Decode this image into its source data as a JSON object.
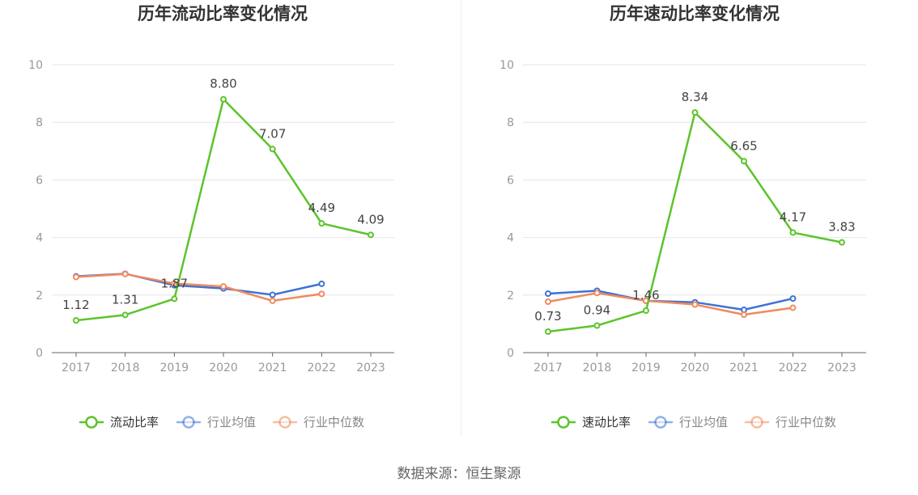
{
  "chart_data": [
    {
      "type": "line",
      "title": "历年流动比率变化情况",
      "categories": [
        "2017",
        "2018",
        "2019",
        "2020",
        "2021",
        "2022",
        "2023"
      ],
      "ylim": [
        0,
        10
      ],
      "yticks": [
        0,
        2,
        4,
        6,
        8,
        10
      ],
      "grid": true,
      "legend_position": "bottom",
      "series": [
        {
          "name": "流动比率",
          "color": "#5cc42b",
          "labeled": true,
          "values": [
            1.12,
            1.31,
            1.87,
            8.8,
            7.07,
            4.49,
            4.09
          ],
          "labels": [
            "1.12",
            "1.31",
            "1.87",
            "8.80",
            "7.07",
            "4.49",
            "4.09"
          ]
        },
        {
          "name": "行业均值",
          "color": "#3d72d4",
          "labeled": false,
          "values": [
            2.65,
            2.74,
            2.34,
            2.23,
            2.01,
            2.39,
            null
          ]
        },
        {
          "name": "行业中位数",
          "color": "#f08a5d",
          "labeled": false,
          "values": [
            2.63,
            2.73,
            2.4,
            2.3,
            1.8,
            2.04,
            null
          ]
        }
      ]
    },
    {
      "type": "line",
      "title": "历年速动比率变化情况",
      "categories": [
        "2017",
        "2018",
        "2019",
        "2020",
        "2021",
        "2022",
        "2023"
      ],
      "ylim": [
        0,
        10
      ],
      "yticks": [
        0,
        2,
        4,
        6,
        8,
        10
      ],
      "grid": true,
      "legend_position": "bottom",
      "series": [
        {
          "name": "速动比率",
          "color": "#5cc42b",
          "labeled": true,
          "values": [
            0.73,
            0.94,
            1.46,
            8.34,
            6.65,
            4.17,
            3.83
          ],
          "labels": [
            "0.73",
            "0.94",
            "1.46",
            "8.34",
            "6.65",
            "4.17",
            "3.83"
          ]
        },
        {
          "name": "行业均值",
          "color": "#3d72d4",
          "labeled": false,
          "values": [
            2.05,
            2.15,
            1.8,
            1.75,
            1.49,
            1.88,
            null
          ]
        },
        {
          "name": "行业中位数",
          "color": "#f08a5d",
          "labeled": false,
          "values": [
            1.77,
            2.07,
            1.8,
            1.67,
            1.32,
            1.56,
            null
          ]
        }
      ]
    }
  ],
  "footer": {
    "source": "数据来源：恒生聚源"
  }
}
